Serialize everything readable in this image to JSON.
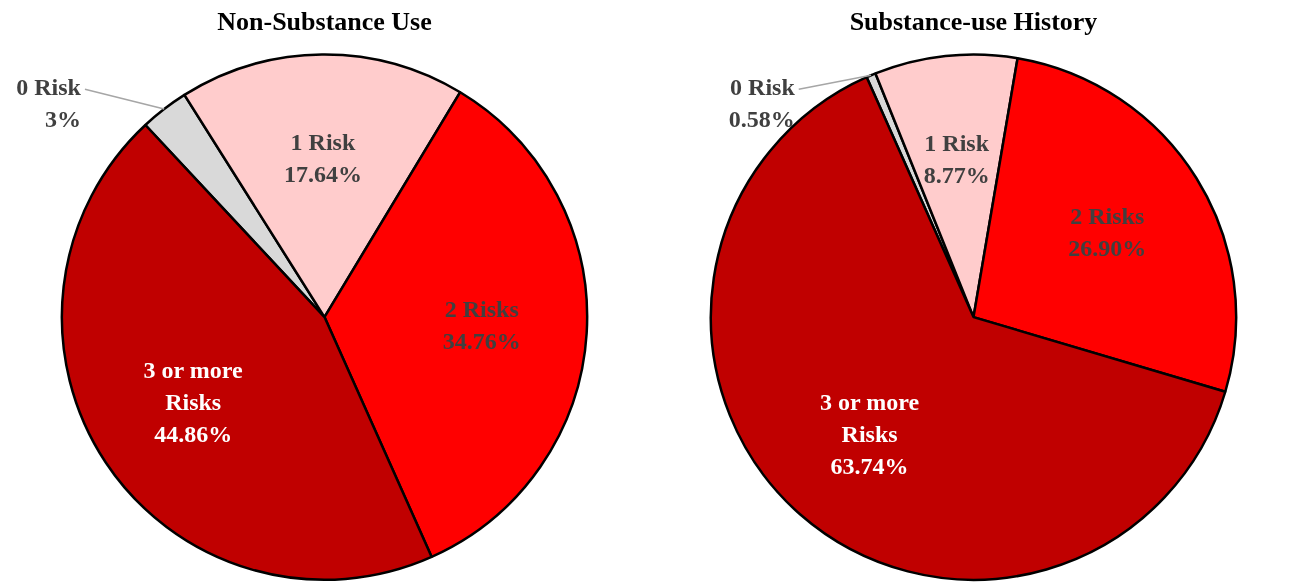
{
  "chart_data": [
    {
      "type": "pie",
      "title": "Non-Substance Use",
      "categories": [
        "0 Risk",
        "1 Risk",
        "2 Risks",
        "3 or more Risks"
      ],
      "values": [
        3,
        17.64,
        34.76,
        44.86
      ],
      "value_labels": [
        "3%",
        "17.64%",
        "34.76%",
        "44.86%"
      ],
      "colors": [
        "#d9d9d9",
        "#ffcccc",
        "#ff0000",
        "#c00000"
      ],
      "legend": false
    },
    {
      "type": "pie",
      "title": "Substance-use History",
      "categories": [
        "0 Risk",
        "1 Risk",
        "2 Risks",
        "3 or more Risks"
      ],
      "values": [
        0.58,
        8.77,
        26.9,
        63.74
      ],
      "value_labels": [
        "0.58%",
        "8.77%",
        "26.90%",
        "63.74%"
      ],
      "colors": [
        "#d9d9d9",
        "#ffcccc",
        "#ff0000",
        "#c00000"
      ],
      "legend": false
    }
  ]
}
